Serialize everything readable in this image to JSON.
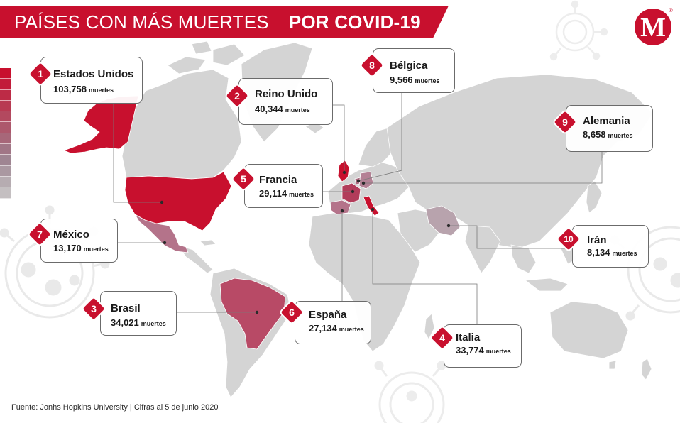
{
  "title": {
    "part1": "PAÍSES CON MÁS MUERTES",
    "part2": "POR COVID-19"
  },
  "logo": {
    "letter": "M",
    "registered": "®"
  },
  "source": "Fuente: Jonhs Hopkins University | Cifras al 5 de junio 2020",
  "unit": "muertes",
  "colors": {
    "brand": "#c8102e",
    "land": "#d4d4d4",
    "top": "#c8102e",
    "mid": "#b24a66",
    "low": "#c27c91"
  },
  "legend_scale": [
    "#c8102e",
    "#c21c3a",
    "#bd2b46",
    "#b83a52",
    "#b3495f",
    "#ad586c",
    "#a76779",
    "#a17686",
    "#9f8592",
    "#aa98a1",
    "#b6acb1",
    "#c4bfc1"
  ],
  "countries": [
    {
      "rank": "1",
      "name": "Estados Unidos",
      "deaths": "103,758"
    },
    {
      "rank": "2",
      "name": "Reino Unido",
      "deaths": "40,344"
    },
    {
      "rank": "3",
      "name": "Brasil",
      "deaths": "34,021"
    },
    {
      "rank": "4",
      "name": "Italia",
      "deaths": "33,774"
    },
    {
      "rank": "5",
      "name": "Francia",
      "deaths": "29,114"
    },
    {
      "rank": "6",
      "name": "España",
      "deaths": "27,134"
    },
    {
      "rank": "7",
      "name": "México",
      "deaths": "13,170"
    },
    {
      "rank": "8",
      "name": "Bélgica",
      "deaths": "9,566"
    },
    {
      "rank": "9",
      "name": "Alemania",
      "deaths": "8,658"
    },
    {
      "rank": "10",
      "name": "Irán",
      "deaths": "8,134"
    }
  ]
}
